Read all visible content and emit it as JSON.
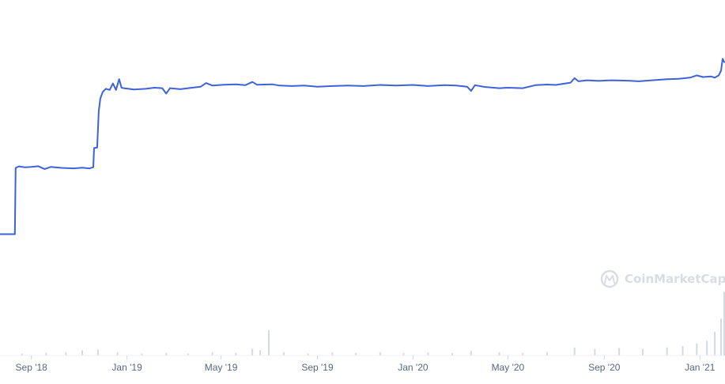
{
  "chart_data": {
    "type": "line",
    "title": "",
    "xlabel": "",
    "ylabel": "",
    "x_tick_labels": [
      "Sep '18",
      "Jan '19",
      "May '19",
      "Sep '19",
      "Jan '20",
      "May '20",
      "Sep '20",
      "Jan '21"
    ],
    "x_tick_dates": [
      "2018-09-01",
      "2019-01-01",
      "2019-05-01",
      "2019-09-01",
      "2020-01-01",
      "2020-05-01",
      "2020-09-01",
      "2021-01-01"
    ],
    "xlim": [
      "2018-07-23",
      "2021-02-02"
    ],
    "y_axis_shown": false,
    "grid": false,
    "colors": {
      "price_line": "#3d63d6",
      "volume_bars": "#d5d9e0",
      "tick_text": "#58667e",
      "watermark": "#d9dde3"
    },
    "series": [
      {
        "kind": "price",
        "values_relative": true,
        "ylim": [
          0,
          1
        ],
        "points": [
          [
            "2018-07-23",
            0.235
          ],
          [
            "2018-08-11",
            0.235
          ],
          [
            "2018-08-12",
            0.545
          ],
          [
            "2018-08-16",
            0.552
          ],
          [
            "2018-08-24",
            0.548
          ],
          [
            "2018-09-01",
            0.55
          ],
          [
            "2018-09-10",
            0.553
          ],
          [
            "2018-09-18",
            0.54
          ],
          [
            "2018-09-26",
            0.55
          ],
          [
            "2018-10-10",
            0.545
          ],
          [
            "2018-10-25",
            0.543
          ],
          [
            "2018-11-05",
            0.546
          ],
          [
            "2018-11-14",
            0.543
          ],
          [
            "2018-11-19",
            0.548
          ],
          [
            "2018-11-20",
            0.638
          ],
          [
            "2018-11-24",
            0.64
          ],
          [
            "2018-11-26",
            0.81
          ],
          [
            "2018-11-28",
            0.87
          ],
          [
            "2018-12-01",
            0.9
          ],
          [
            "2018-12-05",
            0.915
          ],
          [
            "2018-12-10",
            0.91
          ],
          [
            "2018-12-14",
            0.94
          ],
          [
            "2018-12-18",
            0.91
          ],
          [
            "2018-12-22",
            0.96
          ],
          [
            "2018-12-25",
            0.92
          ],
          [
            "2018-12-28",
            0.918
          ],
          [
            "2019-01-10",
            0.912
          ],
          [
            "2019-01-25",
            0.915
          ],
          [
            "2019-02-05",
            0.92
          ],
          [
            "2019-02-15",
            0.918
          ],
          [
            "2019-02-20",
            0.893
          ],
          [
            "2019-02-25",
            0.918
          ],
          [
            "2019-03-10",
            0.913
          ],
          [
            "2019-03-25",
            0.92
          ],
          [
            "2019-04-05",
            0.925
          ],
          [
            "2019-04-12",
            0.942
          ],
          [
            "2019-04-20",
            0.93
          ],
          [
            "2019-05-05",
            0.934
          ],
          [
            "2019-05-20",
            0.936
          ],
          [
            "2019-06-01",
            0.932
          ],
          [
            "2019-06-10",
            0.947
          ],
          [
            "2019-06-16",
            0.934
          ],
          [
            "2019-06-25",
            0.935
          ],
          [
            "2019-07-05",
            0.936
          ],
          [
            "2019-07-15",
            0.93
          ],
          [
            "2019-07-30",
            0.928
          ],
          [
            "2019-08-15",
            0.93
          ],
          [
            "2019-09-01",
            0.925
          ],
          [
            "2019-09-20",
            0.928
          ],
          [
            "2019-10-10",
            0.93
          ],
          [
            "2019-10-30",
            0.928
          ],
          [
            "2019-11-20",
            0.933
          ],
          [
            "2019-12-10",
            0.93
          ],
          [
            "2020-01-01",
            0.933
          ],
          [
            "2020-01-20",
            0.928
          ],
          [
            "2020-02-10",
            0.932
          ],
          [
            "2020-02-25",
            0.93
          ],
          [
            "2020-03-10",
            0.925
          ],
          [
            "2020-03-15",
            0.905
          ],
          [
            "2020-03-20",
            0.932
          ],
          [
            "2020-04-01",
            0.924
          ],
          [
            "2020-04-20",
            0.918
          ],
          [
            "2020-05-01",
            0.92
          ],
          [
            "2020-05-20",
            0.918
          ],
          [
            "2020-06-05",
            0.932
          ],
          [
            "2020-06-20",
            0.935
          ],
          [
            "2020-07-01",
            0.933
          ],
          [
            "2020-07-20",
            0.944
          ],
          [
            "2020-07-25",
            0.965
          ],
          [
            "2020-07-30",
            0.95
          ],
          [
            "2020-08-10",
            0.955
          ],
          [
            "2020-08-25",
            0.952
          ],
          [
            "2020-09-10",
            0.955
          ],
          [
            "2020-10-01",
            0.953
          ],
          [
            "2020-10-15",
            0.95
          ],
          [
            "2020-11-01",
            0.955
          ],
          [
            "2020-11-20",
            0.96
          ],
          [
            "2020-12-05",
            0.962
          ],
          [
            "2020-12-20",
            0.968
          ],
          [
            "2020-12-28",
            0.978
          ],
          [
            "2021-01-05",
            0.97
          ],
          [
            "2021-01-15",
            0.973
          ],
          [
            "2021-01-20",
            0.967
          ],
          [
            "2021-01-25",
            0.978
          ],
          [
            "2021-01-28",
            1.0
          ],
          [
            "2021-01-30",
            1.055
          ],
          [
            "2021-02-01",
            1.04
          ]
        ]
      },
      {
        "kind": "volume",
        "values_relative": true,
        "ylim": [
          0,
          1
        ],
        "points": [
          [
            "2018-08-20",
            0.03
          ],
          [
            "2018-09-20",
            0.04
          ],
          [
            "2018-10-15",
            0.05
          ],
          [
            "2018-11-05",
            0.08
          ],
          [
            "2018-11-25",
            0.09
          ],
          [
            "2018-12-20",
            0.05
          ],
          [
            "2019-01-20",
            0.03
          ],
          [
            "2019-02-20",
            0.04
          ],
          [
            "2019-03-20",
            0.03
          ],
          [
            "2019-04-20",
            0.05
          ],
          [
            "2019-05-20",
            0.04
          ],
          [
            "2019-06-10",
            0.1
          ],
          [
            "2019-06-20",
            0.08
          ],
          [
            "2019-07-01",
            0.38
          ],
          [
            "2019-07-20",
            0.05
          ],
          [
            "2019-08-20",
            0.03
          ],
          [
            "2019-09-20",
            0.05
          ],
          [
            "2019-10-20",
            0.04
          ],
          [
            "2019-11-20",
            0.05
          ],
          [
            "2019-12-20",
            0.04
          ],
          [
            "2020-01-20",
            0.05
          ],
          [
            "2020-02-20",
            0.04
          ],
          [
            "2020-03-15",
            0.07
          ],
          [
            "2020-04-20",
            0.05
          ],
          [
            "2020-05-20",
            0.04
          ],
          [
            "2020-06-20",
            0.05
          ],
          [
            "2020-07-25",
            0.12
          ],
          [
            "2020-08-20",
            0.1
          ],
          [
            "2020-09-20",
            0.11
          ],
          [
            "2020-10-20",
            0.1
          ],
          [
            "2020-11-20",
            0.12
          ],
          [
            "2020-12-10",
            0.14
          ],
          [
            "2020-12-28",
            0.18
          ],
          [
            "2021-01-10",
            0.22
          ],
          [
            "2021-01-20",
            0.35
          ],
          [
            "2021-01-28",
            0.55
          ],
          [
            "2021-02-01",
            0.95
          ]
        ]
      }
    ]
  },
  "watermark": {
    "text": "CoinMarketCap"
  }
}
